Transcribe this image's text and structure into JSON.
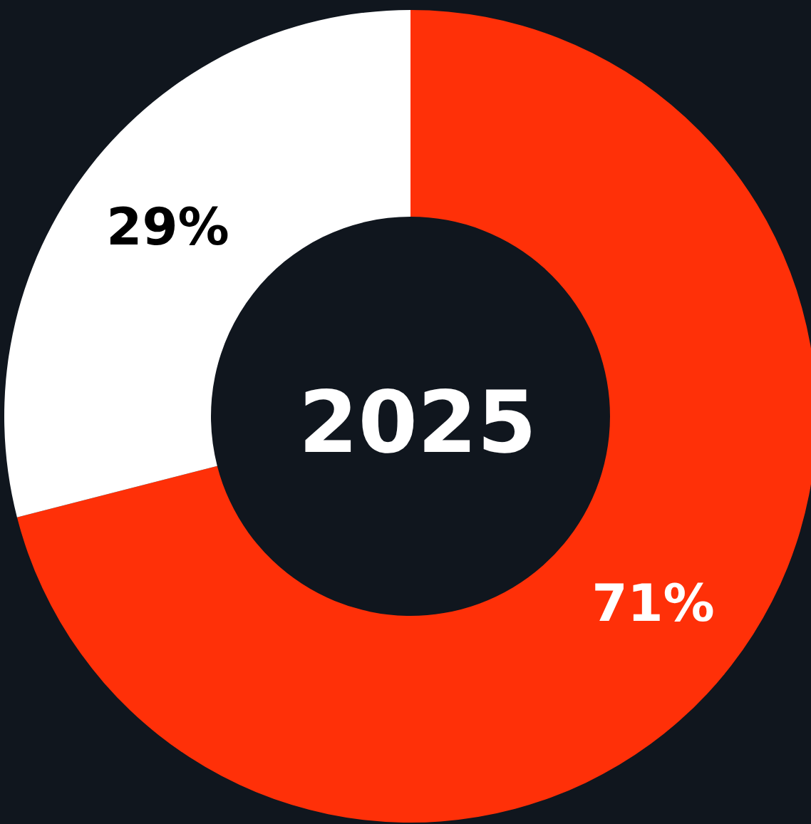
{
  "chart_data": {
    "type": "donut",
    "title": "2025",
    "categories": [
      null,
      null
    ],
    "values": [
      71,
      29
    ],
    "colors": [
      "#ff3008",
      "#ffffff"
    ],
    "value_labels": [
      "71%",
      "29%"
    ]
  }
}
